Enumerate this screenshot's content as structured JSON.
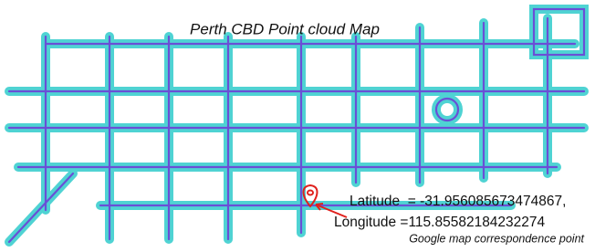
{
  "title": "Perth CBD Point cloud Map",
  "annotation": {
    "latitude": "Latitude  = -31.956085673474867,",
    "longitude": "Longitude =115.85582184232274",
    "caption": "Google map correspondence point"
  }
}
